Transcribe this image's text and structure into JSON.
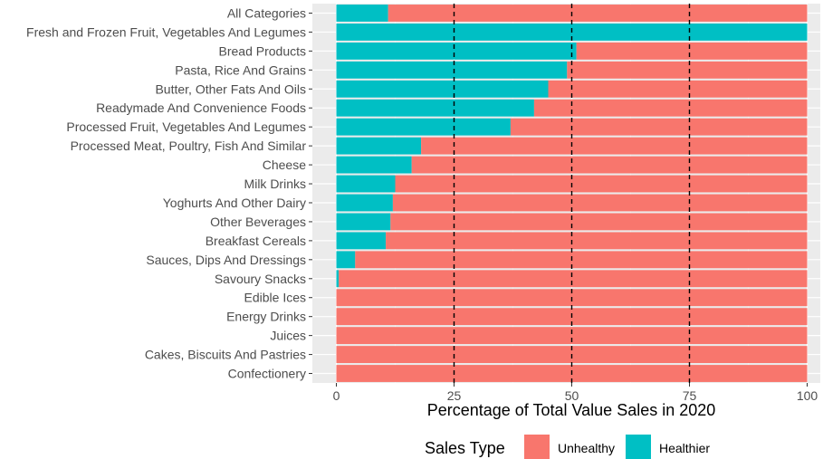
{
  "chart_data": {
    "type": "bar",
    "orientation": "horizontal",
    "stacked": true,
    "categories": [
      "All Categories",
      "Fresh and Frozen Fruit, Vegetables And Legumes",
      "Bread Products",
      "Pasta, Rice And Grains",
      "Butter, Other Fats And Oils",
      "Readymade And Convenience Foods",
      "Processed Fruit, Vegetables And Legumes",
      "Processed Meat, Poultry, Fish And Similar",
      "Cheese",
      "Milk Drinks",
      "Yoghurts And Other Dairy",
      "Other Beverages",
      "Breakfast Cereals",
      "Sauces, Dips And Dressings",
      "Savoury Snacks",
      "Edible Ices",
      "Energy Drinks",
      "Juices",
      "Cakes, Biscuits And Pastries",
      "Confectionery"
    ],
    "series": [
      {
        "name": "Healthier",
        "color": "#00BFC4",
        "values": [
          11,
          100,
          51,
          49,
          45,
          42,
          37,
          18,
          16,
          12.5,
          12,
          11.5,
          10.5,
          4,
          0.5,
          0,
          0,
          0,
          0,
          0
        ]
      },
      {
        "name": "Unhealthy",
        "color": "#F8766D",
        "values": [
          89,
          0,
          49,
          51,
          55,
          58,
          63,
          82,
          84,
          87.5,
          88,
          88.5,
          89.5,
          96,
          99.5,
          100,
          100,
          100,
          100,
          100
        ]
      }
    ],
    "xlabel": "Percentage of Total Value Sales in 2020",
    "ylabel": "",
    "xlim": [
      0,
      100
    ],
    "xticks": [
      0,
      25,
      50,
      75,
      100
    ],
    "reference_lines": [
      25,
      50,
      75
    ],
    "legend": {
      "title": "Sales Type",
      "position": "bottom",
      "entries": [
        {
          "label": "Unhealthy",
          "color": "#F8766D"
        },
        {
          "label": "Healthier",
          "color": "#00BFC4"
        }
      ]
    },
    "panel_background": "#EBEBEB",
    "grid": true
  }
}
